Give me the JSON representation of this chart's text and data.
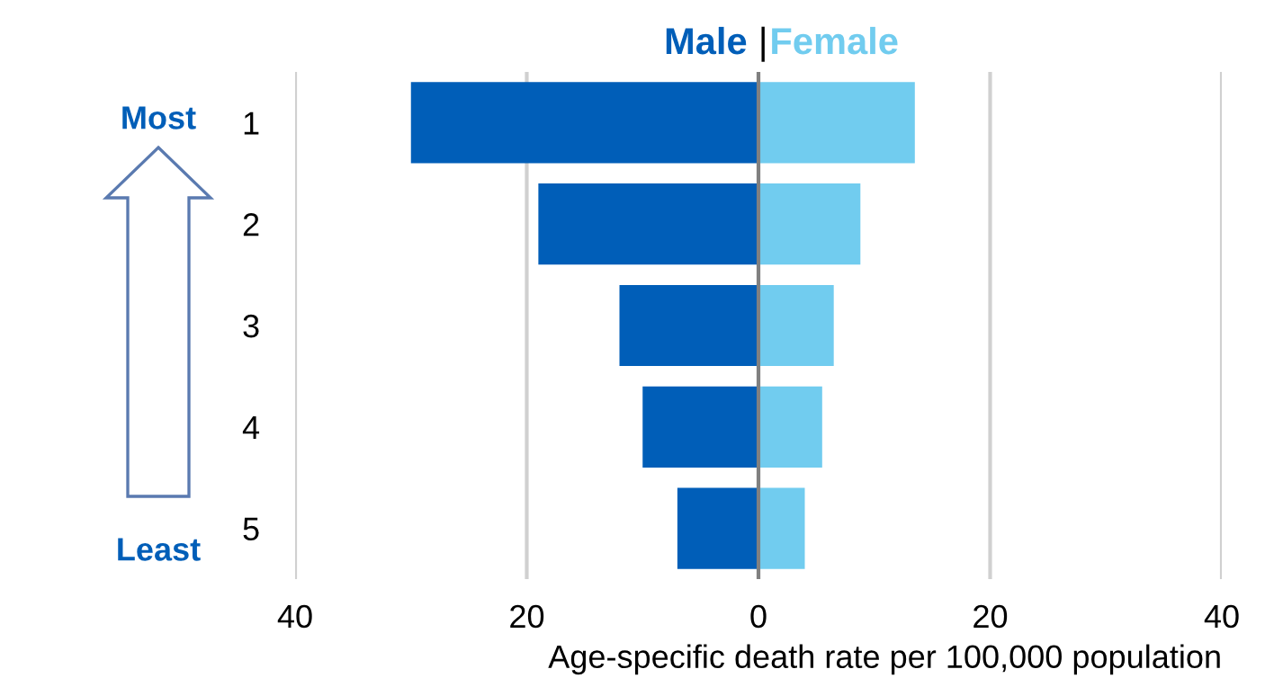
{
  "chart_data": {
    "type": "bar",
    "orientation": "horizontal",
    "stacked": true,
    "categories": [
      "1",
      "2",
      "3",
      "4",
      "5"
    ],
    "series": [
      {
        "name": "Male",
        "color": "#005eb8",
        "values": [
          -30,
          -19,
          -12,
          -10,
          -7
        ]
      },
      {
        "name": "Female",
        "color": "#71ccef",
        "values": [
          13.5,
          8.8,
          6.5,
          5.5,
          4
        ]
      }
    ],
    "xlim": [
      -40,
      40
    ],
    "xticks": [
      {
        "value": -40,
        "label": "40"
      },
      {
        "value": -20,
        "label": "20"
      },
      0,
      20,
      40
    ],
    "xlabel": "Age-specific death rate per 100,000 population",
    "grid": "x",
    "legend": "top",
    "ref_lines": [
      {
        "axis": "x",
        "value": 0,
        "label": null,
        "color": "#808080"
      }
    ],
    "annotations": [
      "Most",
      "Least",
      "|"
    ]
  }
}
